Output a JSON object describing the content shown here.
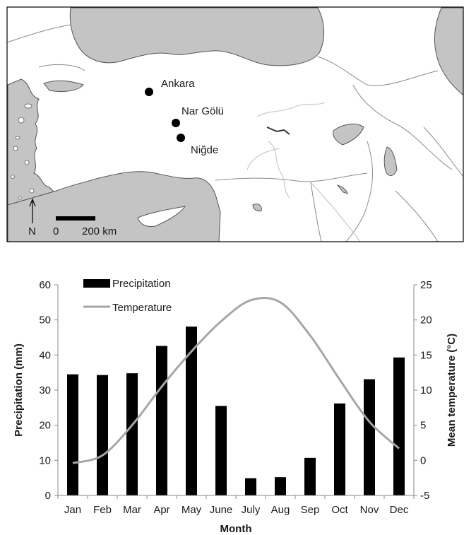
{
  "map": {
    "places": [
      {
        "name": "Ankara"
      },
      {
        "name": "Nar Gölü"
      },
      {
        "name": "Niğde"
      }
    ],
    "north_label": "N",
    "scale_start": "0",
    "scale_end": "200 km",
    "colors": {
      "sea": "#c4c4c4",
      "land": "#ffffff",
      "borders": "#8a8a8a",
      "rivers": "#bdbdbd"
    }
  },
  "chart_data": {
    "type": "bar",
    "categories": [
      "Jan",
      "Feb",
      "Mar",
      "Apr",
      "May",
      "June",
      "July",
      "Aug",
      "Sep",
      "Oct",
      "Nov",
      "Dec"
    ],
    "series": [
      {
        "name": "Precipitation",
        "type": "bar",
        "axis": "left",
        "color": "#000000",
        "values": [
          34.5,
          34.3,
          34.8,
          42.6,
          48.1,
          25.5,
          4.9,
          5.2,
          10.7,
          26.2,
          33.1,
          39.3
        ]
      },
      {
        "name": "Temperature",
        "type": "line",
        "axis": "right",
        "color": "#a6a6a6",
        "values": [
          -0.4,
          0.7,
          5.0,
          10.5,
          15.5,
          19.8,
          22.8,
          22.5,
          17.8,
          11.5,
          5.5,
          1.7
        ]
      }
    ],
    "xlabel": "Month",
    "ylabel": "Precipitation (mm)",
    "y2label": "Mean temperature (°C)",
    "ylim": [
      0,
      60
    ],
    "yticks": [
      "0",
      "10",
      "20",
      "30",
      "40",
      "50",
      "60"
    ],
    "y2lim": [
      -5,
      25
    ],
    "y2ticks": [
      "-5",
      "0",
      "5",
      "10",
      "15",
      "20",
      "25"
    ],
    "legend_position": "top-left",
    "grid": false
  }
}
